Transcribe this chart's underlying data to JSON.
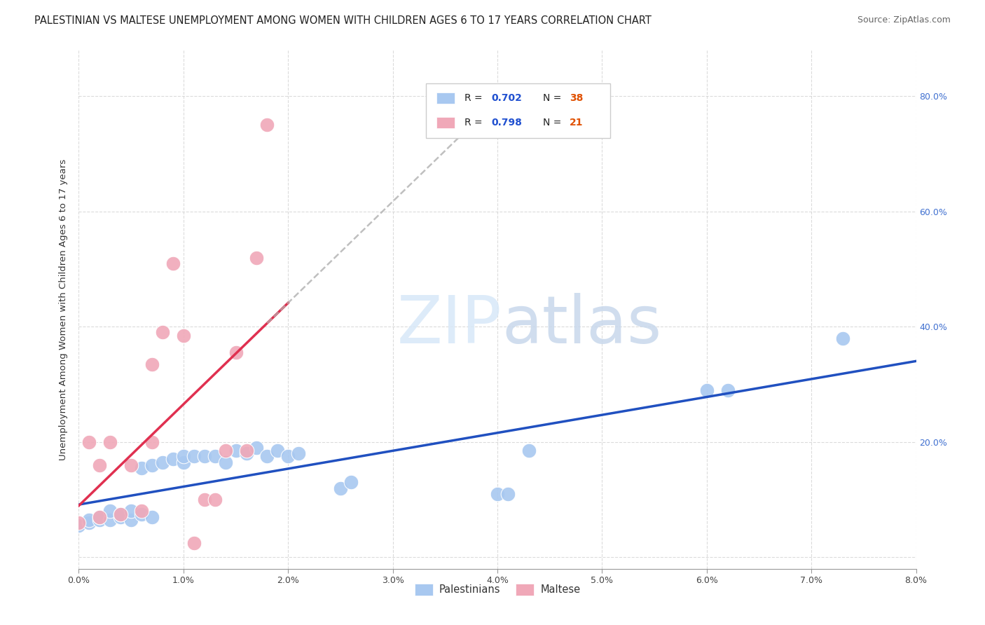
{
  "title": "PALESTINIAN VS MALTESE UNEMPLOYMENT AMONG WOMEN WITH CHILDREN AGES 6 TO 17 YEARS CORRELATION CHART",
  "source": "Source: ZipAtlas.com",
  "ylabel": "Unemployment Among Women with Children Ages 6 to 17 years",
  "xlim": [
    0.0,
    0.08
  ],
  "ylim": [
    -0.02,
    0.88
  ],
  "xticks": [
    0.0,
    0.01,
    0.02,
    0.03,
    0.04,
    0.05,
    0.06,
    0.07,
    0.08
  ],
  "yticks": [
    0.0,
    0.2,
    0.4,
    0.6,
    0.8
  ],
  "xticklabels": [
    "0.0%",
    "1.0%",
    "2.0%",
    "3.0%",
    "4.0%",
    "5.0%",
    "6.0%",
    "7.0%",
    "8.0%"
  ],
  "yticklabels_right": [
    "",
    "20.0%",
    "40.0%",
    "60.0%",
    "80.0%"
  ],
  "color_blue": "#a8c8f0",
  "color_pink": "#f0a8b8",
  "color_blue_line": "#2050c0",
  "color_pink_line": "#e03050",
  "color_gray_dashed": "#b0b0b0",
  "background_color": "#ffffff",
  "grid_color": "#cccccc",
  "blue_scatter_x": [
    0.0,
    0.001,
    0.001,
    0.002,
    0.002,
    0.003,
    0.003,
    0.004,
    0.004,
    0.005,
    0.005,
    0.006,
    0.006,
    0.007,
    0.007,
    0.008,
    0.009,
    0.01,
    0.01,
    0.011,
    0.012,
    0.013,
    0.014,
    0.015,
    0.016,
    0.017,
    0.018,
    0.019,
    0.02,
    0.021,
    0.025,
    0.026,
    0.04,
    0.041,
    0.043,
    0.06,
    0.062,
    0.073
  ],
  "blue_scatter_y": [
    0.055,
    0.06,
    0.065,
    0.065,
    0.07,
    0.065,
    0.08,
    0.07,
    0.075,
    0.065,
    0.08,
    0.075,
    0.155,
    0.07,
    0.16,
    0.165,
    0.17,
    0.165,
    0.175,
    0.175,
    0.175,
    0.175,
    0.165,
    0.185,
    0.18,
    0.19,
    0.175,
    0.185,
    0.175,
    0.18,
    0.12,
    0.13,
    0.11,
    0.11,
    0.185,
    0.29,
    0.29,
    0.38
  ],
  "pink_scatter_x": [
    0.0,
    0.001,
    0.002,
    0.002,
    0.003,
    0.004,
    0.005,
    0.006,
    0.007,
    0.007,
    0.008,
    0.009,
    0.01,
    0.011,
    0.012,
    0.013,
    0.014,
    0.015,
    0.016,
    0.017,
    0.018
  ],
  "pink_scatter_y": [
    0.06,
    0.2,
    0.07,
    0.16,
    0.2,
    0.075,
    0.16,
    0.08,
    0.335,
    0.2,
    0.39,
    0.51,
    0.385,
    0.025,
    0.1,
    0.1,
    0.185,
    0.355,
    0.185,
    0.52,
    0.75
  ],
  "title_fontsize": 10.5,
  "source_fontsize": 9,
  "tick_fontsize": 9
}
